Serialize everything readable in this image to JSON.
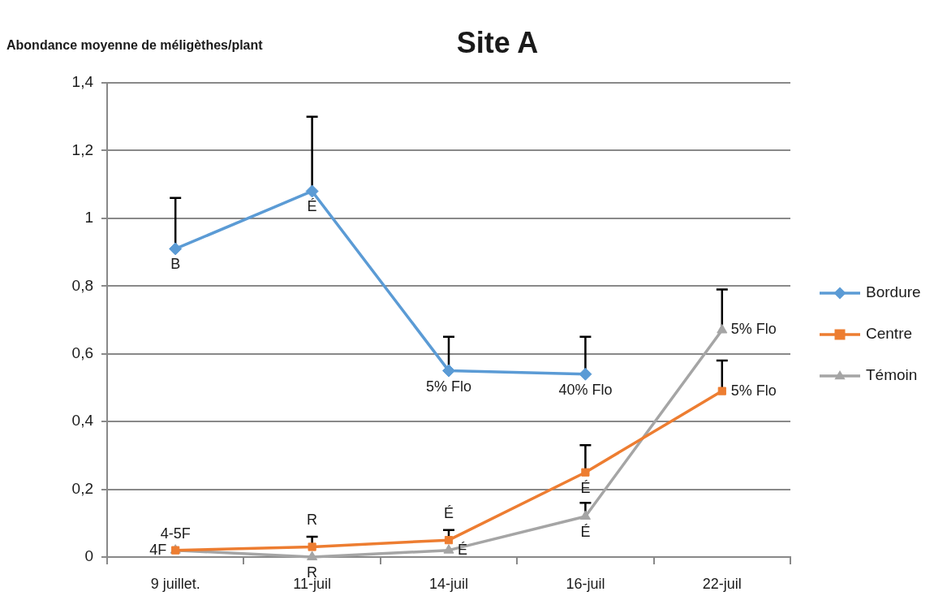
{
  "chart_data": {
    "type": "line",
    "title": "Site A",
    "ylabel": "Abondance moyenne de méligèthes/plant",
    "categories": [
      "9 juillet.",
      "11-juil",
      "14-juil",
      "16-juil",
      "22-juil"
    ],
    "series": [
      {
        "name": "Bordure",
        "color": "#5b9bd5",
        "marker": "diamond",
        "values": [
          0.91,
          1.08,
          0.55,
          0.54,
          null
        ],
        "errors": [
          [
            0.91,
            1.06
          ],
          [
            1.08,
            1.3
          ],
          [
            0.55,
            0.65
          ],
          [
            0.54,
            0.65
          ],
          null
        ]
      },
      {
        "name": "Centre",
        "color": "#ed7d31",
        "marker": "square",
        "values": [
          0.02,
          0.03,
          0.05,
          0.25,
          0.49
        ],
        "errors": [
          null,
          [
            0.03,
            0.06
          ],
          [
            0.05,
            0.08
          ],
          [
            0.25,
            0.33
          ],
          [
            0.49,
            0.58
          ]
        ]
      },
      {
        "name": "Témoin",
        "color": "#a5a5a5",
        "marker": "triangle",
        "values": [
          0.02,
          0,
          0.02,
          0.12,
          0.67
        ],
        "errors": [
          null,
          null,
          null,
          [
            0.12,
            0.16
          ],
          [
            0.67,
            0.79
          ]
        ]
      }
    ],
    "ylim": [
      0,
      1.4
    ],
    "yticks": [
      0,
      {
        "value": 0.2,
        "label": "0,2"
      },
      {
        "value": 0.4,
        "label": "0,4"
      },
      {
        "value": 0.6,
        "label": "0,6"
      },
      {
        "value": 0.8,
        "label": "0,8"
      },
      1,
      {
        "value": 1.2,
        "label": "1,2"
      },
      {
        "value": 1.4,
        "label": "1,4"
      }
    ],
    "grid": "y",
    "legend": "right",
    "annotations": [
      {
        "text": "B",
        "x": "9 juillet.",
        "y": 0.91
      },
      {
        "text": "É",
        "x": "11-juil",
        "y": 1.08
      },
      {
        "text": "5% Flo",
        "x": "14-juil",
        "y": 0.55
      },
      {
        "text": "40% Flo",
        "x": "16-juil",
        "y": 0.54
      },
      {
        "text": "4-5F",
        "x": "9 juillet.",
        "y": 0.02
      },
      {
        "text": "R",
        "x": "11-juil",
        "y": 0.03
      },
      {
        "text": "É",
        "x": "14-juil",
        "y": 0.05
      },
      {
        "text": "É",
        "x": "16-juil",
        "y": 0.25
      },
      {
        "text": "5% Flo",
        "x": "22-juil",
        "y": 0.49
      },
      {
        "text": "4F",
        "x": "9 juillet.",
        "y": 0.02
      },
      {
        "text": "R",
        "x": "11-juil",
        "y": 0
      },
      {
        "text": "É",
        "x": "14-juil",
        "y": 0.02
      },
      {
        "text": "É",
        "x": "16-juil",
        "y": 0.12
      },
      {
        "text": "5% Flo",
        "x": "22-juil",
        "y": 0.67
      }
    ]
  }
}
